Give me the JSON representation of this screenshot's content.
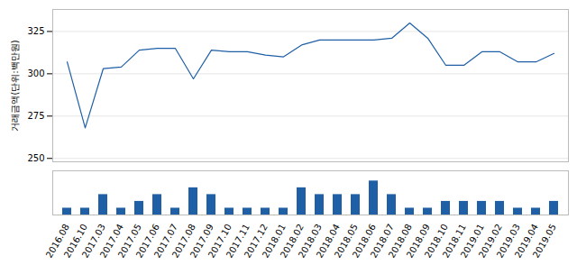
{
  "chart_data": [
    {
      "type": "line",
      "ylabel": "거래금액(단위:백만원)",
      "categories": [
        "2016.08",
        "2016.10",
        "2017.03",
        "2017.04",
        "2017.05",
        "2017.06",
        "2017.07",
        "2017.08",
        "2017.09",
        "2017.10",
        "2017.11",
        "2017.12",
        "2018.01",
        "2018.02",
        "2018.03",
        "2018.04",
        "2018.05",
        "2018.06",
        "2018.07",
        "2018.08",
        "2018.09",
        "2018.10",
        "2018.11",
        "2019.01",
        "2019.02",
        "2019.03",
        "2019.04",
        "2019.05"
      ],
      "values": [
        307,
        268,
        303,
        304,
        314,
        315,
        315,
        297,
        314,
        313,
        313,
        311,
        310,
        317,
        320,
        320,
        320,
        320,
        321,
        330,
        321,
        305,
        305,
        313,
        313,
        307,
        307,
        312
      ],
      "color": "#1f5fa6",
      "ylim": [
        248,
        338
      ],
      "yticks": [
        250,
        275,
        300,
        325
      ],
      "grid": true,
      "tick_labels": "y"
    },
    {
      "type": "bar",
      "categories": [
        "2016.08",
        "2016.10",
        "2017.03",
        "2017.04",
        "2017.05",
        "2017.06",
        "2017.07",
        "2017.08",
        "2017.09",
        "2017.10",
        "2017.11",
        "2017.12",
        "2018.01",
        "2018.02",
        "2018.03",
        "2018.04",
        "2018.05",
        "2018.06",
        "2018.07",
        "2018.08",
        "2018.09",
        "2018.10",
        "2018.11",
        "2019.01",
        "2019.02",
        "2019.03",
        "2019.04",
        "2019.05"
      ],
      "values": [
        1,
        1,
        3,
        1,
        2,
        3,
        1,
        4,
        3,
        1,
        1,
        1,
        1,
        4,
        3,
        3,
        3,
        5,
        3,
        1,
        1,
        2,
        2,
        2,
        2,
        1,
        1,
        2
      ],
      "color": "#1f5fa6",
      "ylim": [
        0,
        6.5
      ],
      "grid": false,
      "tick_labels": "x"
    }
  ]
}
